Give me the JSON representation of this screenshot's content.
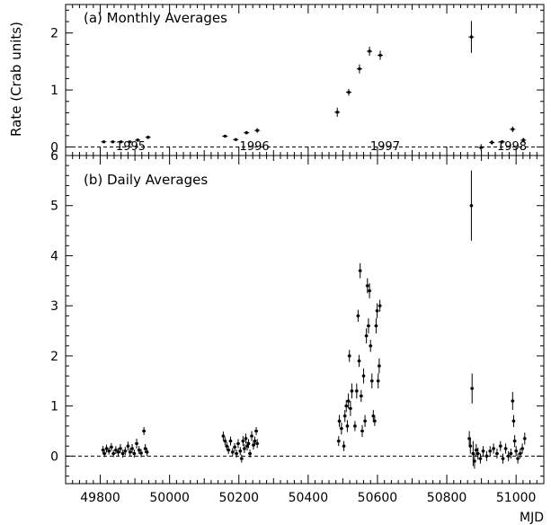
{
  "chart_data": [
    {
      "type": "scatter",
      "panel": "a",
      "title": "(a) Monthly Averages",
      "ylabel": "Rate (Crab units)",
      "xlabel": "",
      "xlim": [
        49700,
        51080
      ],
      "ylim": [
        -0.15,
        2.5
      ],
      "yticks": [
        0,
        1,
        2
      ],
      "baseline": 0,
      "year_labels": [
        {
          "text": "1995",
          "x": 49888
        },
        {
          "text": "1996",
          "x": 50245
        },
        {
          "text": "1997",
          "x": 50622
        },
        {
          "text": "1998",
          "x": 50988
        }
      ],
      "series": [
        {
          "points": [
            {
              "x": 49810,
              "y": 0.09,
              "err": 0.02
            },
            {
              "x": 49836,
              "y": 0.09,
              "err": 0.02
            },
            {
              "x": 49860,
              "y": 0.09,
              "err": 0.02
            },
            {
              "x": 49885,
              "y": 0.09,
              "err": 0.02
            },
            {
              "x": 49908,
              "y": 0.12,
              "err": 0.03
            },
            {
              "x": 49938,
              "y": 0.17,
              "err": 0.03
            },
            {
              "x": 50160,
              "y": 0.19,
              "err": 0.02
            },
            {
              "x": 50191,
              "y": 0.13,
              "err": 0.02
            },
            {
              "x": 50222,
              "y": 0.25,
              "err": 0.03
            },
            {
              "x": 50253,
              "y": 0.29,
              "err": 0.04
            },
            {
              "x": 50484,
              "y": 0.61,
              "err": 0.08
            },
            {
              "x": 50517,
              "y": 0.96,
              "err": 0.06
            },
            {
              "x": 50548,
              "y": 1.37,
              "err": 0.08
            },
            {
              "x": 50577,
              "y": 1.68,
              "err": 0.08
            },
            {
              "x": 50608,
              "y": 1.61,
              "err": 0.08
            },
            {
              "x": 50871,
              "y": 1.93,
              "err": 0.28
            },
            {
              "x": 50899,
              "y": -0.01,
              "err": 0.06
            },
            {
              "x": 50930,
              "y": 0.08,
              "err": 0.04
            },
            {
              "x": 50960,
              "y": 0.09,
              "err": 0.03
            },
            {
              "x": 50990,
              "y": 0.31,
              "err": 0.05
            },
            {
              "x": 51021,
              "y": 0.12,
              "err": 0.04
            }
          ]
        }
      ]
    },
    {
      "type": "scatter",
      "panel": "b",
      "title": "(b) Daily Averages",
      "xlabel": "MJD",
      "ylabel": "",
      "xlim": [
        49700,
        51080
      ],
      "ylim": [
        -0.55,
        6.0
      ],
      "xticks": [
        49800,
        50000,
        50200,
        50400,
        50600,
        50800,
        51000
      ],
      "yticks": [
        0,
        1,
        2,
        3,
        4,
        5,
        6
      ],
      "baseline": 0,
      "series": [
        {
          "points": [
            {
              "x": 49808,
              "y": 0.12,
              "err": 0.08
            },
            {
              "x": 49812,
              "y": 0.05,
              "err": 0.07
            },
            {
              "x": 49818,
              "y": 0.15,
              "err": 0.08
            },
            {
              "x": 49825,
              "y": 0.1,
              "err": 0.07
            },
            {
              "x": 49832,
              "y": 0.18,
              "err": 0.08
            },
            {
              "x": 49838,
              "y": 0.05,
              "err": 0.07
            },
            {
              "x": 49845,
              "y": 0.12,
              "err": 0.08
            },
            {
              "x": 49852,
              "y": 0.08,
              "err": 0.08
            },
            {
              "x": 49858,
              "y": 0.15,
              "err": 0.09
            },
            {
              "x": 49865,
              "y": 0.05,
              "err": 0.08
            },
            {
              "x": 49872,
              "y": 0.1,
              "err": 0.08
            },
            {
              "x": 49880,
              "y": 0.2,
              "err": 0.09
            },
            {
              "x": 49886,
              "y": 0.08,
              "err": 0.08
            },
            {
              "x": 49892,
              "y": 0.15,
              "err": 0.09
            },
            {
              "x": 49898,
              "y": 0.05,
              "err": 0.08
            },
            {
              "x": 49905,
              "y": 0.25,
              "err": 0.1
            },
            {
              "x": 49912,
              "y": 0.12,
              "err": 0.08
            },
            {
              "x": 49918,
              "y": 0.06,
              "err": 0.08
            },
            {
              "x": 49926,
              "y": 0.5,
              "err": 0.08
            },
            {
              "x": 49930,
              "y": 0.15,
              "err": 0.09
            },
            {
              "x": 49935,
              "y": 0.08,
              "err": 0.08
            },
            {
              "x": 50155,
              "y": 0.4,
              "err": 0.09
            },
            {
              "x": 50160,
              "y": 0.3,
              "err": 0.08
            },
            {
              "x": 50165,
              "y": 0.2,
              "err": 0.08
            },
            {
              "x": 50170,
              "y": 0.12,
              "err": 0.08
            },
            {
              "x": 50176,
              "y": 0.3,
              "err": 0.09
            },
            {
              "x": 50182,
              "y": 0.08,
              "err": 0.08
            },
            {
              "x": 50188,
              "y": 0.18,
              "err": 0.08
            },
            {
              "x": 50193,
              "y": 0.05,
              "err": 0.08
            },
            {
              "x": 50198,
              "y": 0.25,
              "err": 0.09
            },
            {
              "x": 50204,
              "y": 0.1,
              "err": 0.08
            },
            {
              "x": 50208,
              "y": -0.05,
              "err": 0.08
            },
            {
              "x": 50212,
              "y": 0.3,
              "err": 0.1
            },
            {
              "x": 50216,
              "y": 0.15,
              "err": 0.09
            },
            {
              "x": 50220,
              "y": 0.35,
              "err": 0.1
            },
            {
              "x": 50224,
              "y": 0.2,
              "err": 0.09
            },
            {
              "x": 50228,
              "y": 0.25,
              "err": 0.09
            },
            {
              "x": 50232,
              "y": 0.05,
              "err": 0.08
            },
            {
              "x": 50237,
              "y": 0.4,
              "err": 0.1
            },
            {
              "x": 50242,
              "y": 0.22,
              "err": 0.09
            },
            {
              "x": 50246,
              "y": 0.3,
              "err": 0.09
            },
            {
              "x": 50250,
              "y": 0.5,
              "err": 0.08
            },
            {
              "x": 50253,
              "y": 0.25,
              "err": 0.09
            },
            {
              "x": 50488,
              "y": 0.3,
              "err": 0.1
            },
            {
              "x": 50490,
              "y": 0.7,
              "err": 0.12
            },
            {
              "x": 50496,
              "y": 0.55,
              "err": 0.12
            },
            {
              "x": 50503,
              "y": 0.2,
              "err": 0.1
            },
            {
              "x": 50506,
              "y": 0.8,
              "err": 0.12
            },
            {
              "x": 50510,
              "y": 1.0,
              "err": 0.12
            },
            {
              "x": 50513,
              "y": 0.6,
              "err": 0.12
            },
            {
              "x": 50516,
              "y": 1.1,
              "err": 0.15
            },
            {
              "x": 50519,
              "y": 2.0,
              "err": 0.12
            },
            {
              "x": 50522,
              "y": 0.95,
              "err": 0.15
            },
            {
              "x": 50526,
              "y": 1.3,
              "err": 0.15
            },
            {
              "x": 50535,
              "y": 0.6,
              "err": 0.1
            },
            {
              "x": 50540,
              "y": 1.3,
              "err": 0.15
            },
            {
              "x": 50544,
              "y": 2.8,
              "err": 0.12
            },
            {
              "x": 50547,
              "y": 1.9,
              "err": 0.12
            },
            {
              "x": 50550,
              "y": 3.7,
              "err": 0.15
            },
            {
              "x": 50553,
              "y": 1.2,
              "err": 0.12
            },
            {
              "x": 50556,
              "y": 0.5,
              "err": 0.12
            },
            {
              "x": 50560,
              "y": 1.6,
              "err": 0.15
            },
            {
              "x": 50564,
              "y": 0.7,
              "err": 0.12
            },
            {
              "x": 50568,
              "y": 2.4,
              "err": 0.15
            },
            {
              "x": 50571,
              "y": 3.4,
              "err": 0.15
            },
            {
              "x": 50574,
              "y": 2.6,
              "err": 0.15
            },
            {
              "x": 50577,
              "y": 3.3,
              "err": 0.15
            },
            {
              "x": 50580,
              "y": 2.2,
              "err": 0.12
            },
            {
              "x": 50584,
              "y": 1.5,
              "err": 0.15
            },
            {
              "x": 50588,
              "y": 0.8,
              "err": 0.12
            },
            {
              "x": 50592,
              "y": 0.7,
              "err": 0.1
            },
            {
              "x": 50596,
              "y": 2.6,
              "err": 0.15
            },
            {
              "x": 50599,
              "y": 2.9,
              "err": 0.15
            },
            {
              "x": 50602,
              "y": 1.5,
              "err": 0.15
            },
            {
              "x": 50605,
              "y": 1.8,
              "err": 0.15
            },
            {
              "x": 50607,
              "y": 3.0,
              "err": 0.12
            },
            {
              "x": 50865,
              "y": 0.35,
              "err": 0.15
            },
            {
              "x": 50868,
              "y": 0.2,
              "err": 0.15
            },
            {
              "x": 50871,
              "y": 5.0,
              "err": 0.7
            },
            {
              "x": 50873,
              "y": 1.35,
              "err": 0.3
            },
            {
              "x": 50876,
              "y": 0.05,
              "err": 0.25
            },
            {
              "x": 50880,
              "y": -0.1,
              "err": 0.15
            },
            {
              "x": 50885,
              "y": 0.12,
              "err": 0.12
            },
            {
              "x": 50890,
              "y": 0.05,
              "err": 0.12
            },
            {
              "x": 50897,
              "y": -0.05,
              "err": 0.1
            },
            {
              "x": 50905,
              "y": 0.1,
              "err": 0.1
            },
            {
              "x": 50915,
              "y": 0.0,
              "err": 0.1
            },
            {
              "x": 50925,
              "y": 0.1,
              "err": 0.1
            },
            {
              "x": 50935,
              "y": 0.15,
              "err": 0.1
            },
            {
              "x": 50945,
              "y": 0.05,
              "err": 0.1
            },
            {
              "x": 50955,
              "y": 0.2,
              "err": 0.1
            },
            {
              "x": 50962,
              "y": -0.05,
              "err": 0.1
            },
            {
              "x": 50970,
              "y": 0.15,
              "err": 0.1
            },
            {
              "x": 50978,
              "y": 0.0,
              "err": 0.1
            },
            {
              "x": 50985,
              "y": 0.05,
              "err": 0.1
            },
            {
              "x": 50990,
              "y": 1.1,
              "err": 0.18
            },
            {
              "x": 50993,
              "y": 0.7,
              "err": 0.12
            },
            {
              "x": 50996,
              "y": 0.3,
              "err": 0.12
            },
            {
              "x": 51000,
              "y": 0.1,
              "err": 0.1
            },
            {
              "x": 51005,
              "y": -0.05,
              "err": 0.1
            },
            {
              "x": 51012,
              "y": 0.05,
              "err": 0.1
            },
            {
              "x": 51018,
              "y": 0.15,
              "err": 0.1
            },
            {
              "x": 51025,
              "y": 0.35,
              "err": 0.12
            }
          ]
        }
      ]
    }
  ]
}
